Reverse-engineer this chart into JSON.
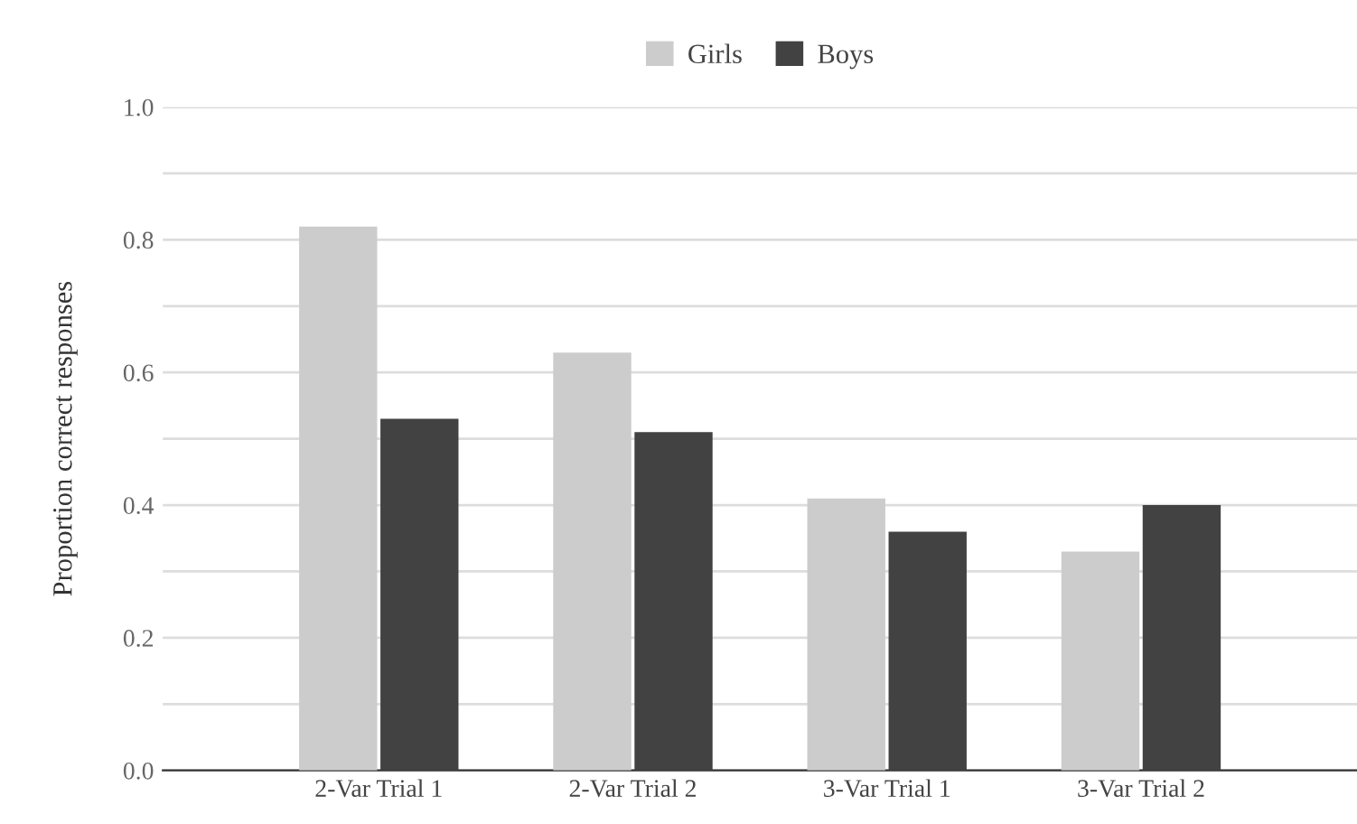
{
  "chart_data": {
    "type": "bar",
    "ylabel": "Proportion correct responses",
    "categories": [
      "2-Var Trial 1",
      "2-Var Trial 2",
      "3-Var Trial 1",
      "3-Var Trial 2"
    ],
    "series": [
      {
        "name": "Girls",
        "color": "#cccccc",
        "values": [
          0.82,
          0.63,
          0.41,
          0.33
        ]
      },
      {
        "name": "Boys",
        "color": "#424242",
        "values": [
          0.53,
          0.51,
          0.36,
          0.4
        ]
      }
    ],
    "ylim": [
      0,
      1.0
    ],
    "yticks": [
      {
        "value": 0,
        "label": "0.0"
      },
      {
        "value": 0.1,
        "label": null
      },
      0.2,
      {
        "value": 0.3,
        "label": null
      },
      0.4,
      {
        "value": 0.5,
        "label": null
      },
      0.6,
      {
        "value": 0.7,
        "label": null
      },
      0.8,
      {
        "value": 0.9,
        "label": null
      },
      {
        "value": 1,
        "label": "1.0"
      }
    ],
    "grid": "y",
    "legend": "top"
  }
}
